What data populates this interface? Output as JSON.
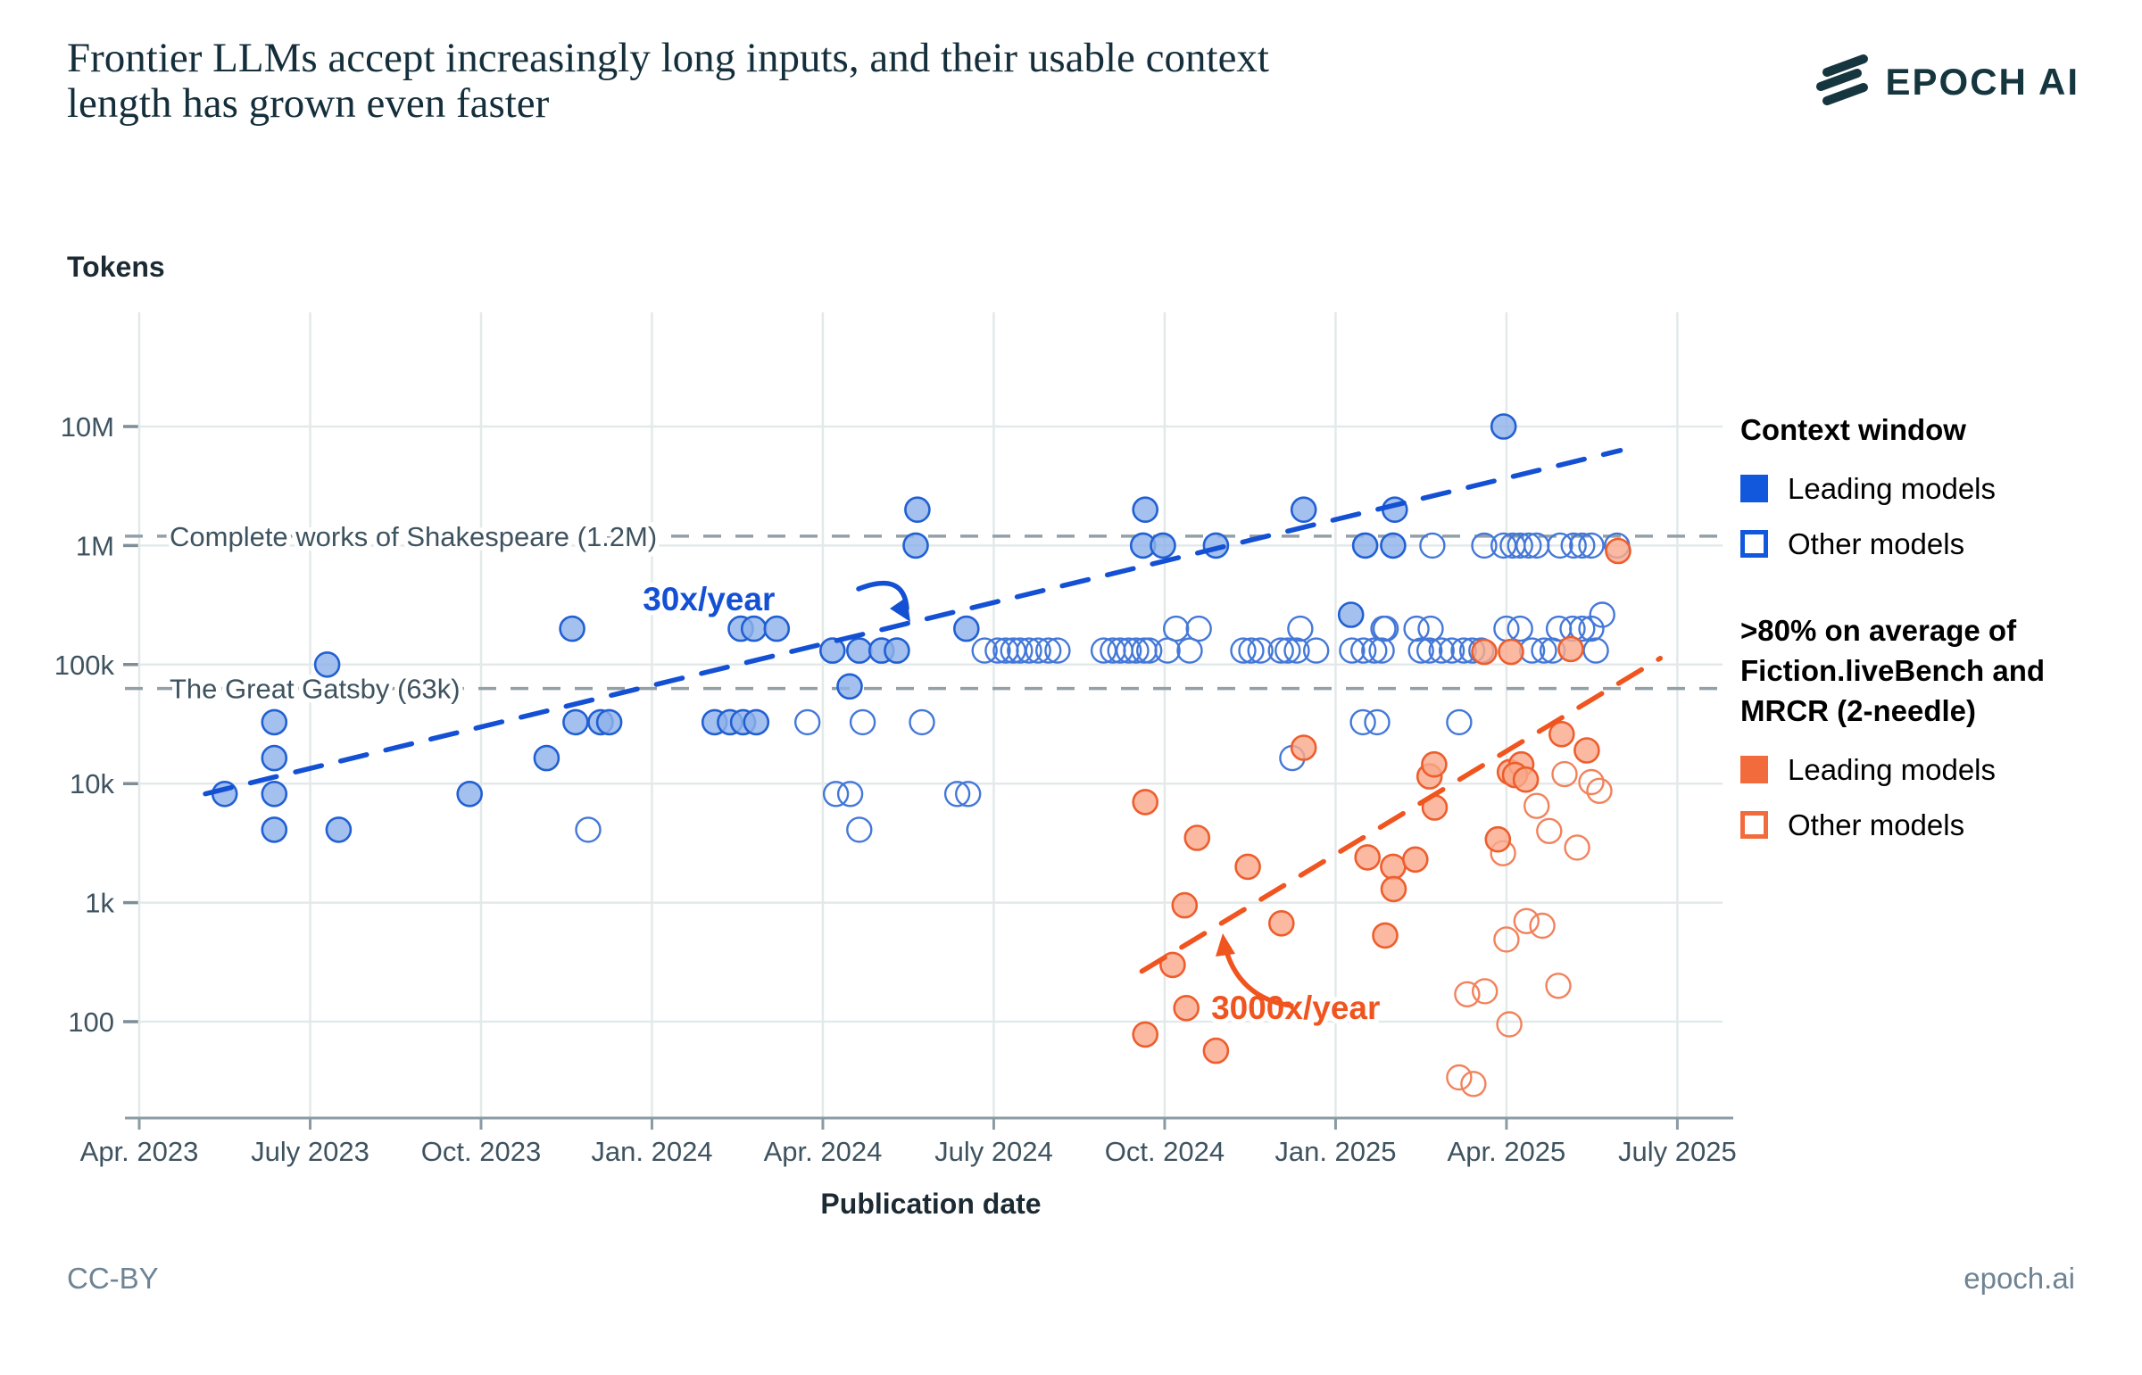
{
  "title": {
    "line1": "Frontier LLMs accept increasingly long inputs, and their usable context",
    "line2": "length has grown even faster"
  },
  "logo": {
    "text": "EPOCH AI"
  },
  "footer": {
    "left": "CC-BY",
    "right": "epoch.ai"
  },
  "legend": {
    "group1_title": "Context window",
    "group1_items": [
      {
        "label": "Leading models",
        "style": "filled",
        "color": "blue"
      },
      {
        "label": "Other models",
        "style": "open",
        "color": "blue"
      }
    ],
    "group2_title_l1": ">80% on average of",
    "group2_title_l2": "Fiction.liveBench and",
    "group2_title_l3": "MRCR (2-needle)",
    "group2_items": [
      {
        "label": "Leading models",
        "style": "filled",
        "color": "orange"
      },
      {
        "label": "Other models",
        "style": "open",
        "color": "orange"
      }
    ]
  },
  "colors": {
    "accent_blue": "#1158DC",
    "blue_fill": "#8FB2EA",
    "blue_stroke": "#2160D3",
    "blue_open": "#4478D8",
    "trend_blue": "#1450D4",
    "accent_orange": "#F26B3C",
    "orange_fill": "#F9A98B",
    "orange_stroke": "#EE5D2D",
    "orange_open": "#F2825C",
    "trend_orange": "#F0541F",
    "grid": "#E3E9E9",
    "refline": "#93A0A7",
    "axis_line": "#8B9BA3",
    "axis_text": "#3E5360",
    "dark_text": "#1C2B33",
    "logo_color": "#15363F"
  },
  "chart_data": {
    "type": "scatter",
    "title": "Frontier LLMs accept increasingly long inputs, and their usable context length has grown even faster",
    "xlabel": "Publication date",
    "ylabel": "Tokens",
    "y_scale": "log",
    "x_unit": "months_since_2023-04",
    "x_ticks": [
      {
        "t": 0,
        "label": "Apr. 2023"
      },
      {
        "t": 3,
        "label": "July 2023"
      },
      {
        "t": 6,
        "label": "Oct. 2023"
      },
      {
        "t": 9,
        "label": "Jan. 2024"
      },
      {
        "t": 12,
        "label": "Apr. 2024"
      },
      {
        "t": 15,
        "label": "July 2024"
      },
      {
        "t": 18,
        "label": "Oct. 2024"
      },
      {
        "t": 21,
        "label": "Jan. 2025"
      },
      {
        "t": 24,
        "label": "Apr. 2025"
      },
      {
        "t": 27,
        "label": "July 2025"
      }
    ],
    "y_ticks": [
      {
        "v": 100,
        "label": "100"
      },
      {
        "v": 1000,
        "label": "1k"
      },
      {
        "v": 10000,
        "label": "10k"
      },
      {
        "v": 100000,
        "label": "100k"
      },
      {
        "v": 1000000,
        "label": "1M"
      },
      {
        "v": 10000000,
        "label": "10M"
      }
    ],
    "reference_lines": [
      {
        "v": 1200000,
        "label": "Complete works of Shakespeare (1.2M)"
      },
      {
        "v": 63000,
        "label": "The Great Gatsby (63k)"
      }
    ],
    "trend_lines": [
      {
        "name": "30x/year",
        "color": "blue",
        "points": [
          [
            1.16,
            8200
          ],
          [
            26.0,
            6300000
          ]
        ]
      },
      {
        "name": "3000x/year",
        "color": "orange",
        "points": [
          [
            17.6,
            265
          ],
          [
            26.7,
            113000
          ]
        ]
      }
    ],
    "annotations": [
      {
        "text": "30x/year",
        "color": "blue",
        "t": 10.0,
        "v": 350000
      },
      {
        "text": "3000x/year",
        "color": "orange",
        "t": 20.3,
        "v": 130
      }
    ],
    "series": [
      {
        "name": "Context window — Leading models",
        "color": "blue",
        "style": "filled",
        "points": [
          [
            1.5,
            8192
          ],
          [
            2.37,
            32768
          ],
          [
            2.37,
            16384
          ],
          [
            2.37,
            8192
          ],
          [
            2.37,
            4096
          ],
          [
            3.3,
            100000
          ],
          [
            3.5,
            4096
          ],
          [
            5.8,
            8192
          ],
          [
            7.15,
            16384
          ],
          [
            7.6,
            200000
          ],
          [
            7.66,
            32768
          ],
          [
            8.1,
            32768
          ],
          [
            8.25,
            32768
          ],
          [
            10.1,
            32768
          ],
          [
            10.37,
            32768
          ],
          [
            10.6,
            32768
          ],
          [
            10.83,
            32768
          ],
          [
            10.56,
            200000
          ],
          [
            10.79,
            200000
          ],
          [
            11.19,
            200000
          ],
          [
            12.17,
            131072
          ],
          [
            12.64,
            131072
          ],
          [
            13.03,
            131072
          ],
          [
            13.3,
            131072
          ],
          [
            12.47,
            65536
          ],
          [
            13.63,
            1000000
          ],
          [
            13.66,
            2000000
          ],
          [
            14.52,
            200000
          ],
          [
            17.62,
            1000000
          ],
          [
            17.66,
            2000000
          ],
          [
            17.97,
            1000000
          ],
          [
            18.9,
            1000000
          ],
          [
            20.44,
            2000000
          ],
          [
            21.27,
            262144
          ],
          [
            21.52,
            1000000
          ],
          [
            22.01,
            1000000
          ],
          [
            22.04,
            2000000
          ],
          [
            23.95,
            10000000
          ]
        ]
      },
      {
        "name": "Context window — Other models",
        "color": "blue",
        "style": "open",
        "points": [
          [
            7.88,
            4096
          ],
          [
            12.64,
            4096
          ],
          [
            12.23,
            8192
          ],
          [
            12.48,
            8192
          ],
          [
            14.36,
            8192
          ],
          [
            14.55,
            8192
          ],
          [
            11.73,
            32768
          ],
          [
            12.7,
            32768
          ],
          [
            13.74,
            32768
          ],
          [
            14.84,
            131072
          ],
          [
            15.07,
            131072
          ],
          [
            15.21,
            131072
          ],
          [
            15.34,
            131072
          ],
          [
            15.46,
            131072
          ],
          [
            15.62,
            131072
          ],
          [
            15.78,
            131072
          ],
          [
            15.96,
            131072
          ],
          [
            16.12,
            131072
          ],
          [
            16.93,
            131072
          ],
          [
            17.09,
            131072
          ],
          [
            17.22,
            131072
          ],
          [
            17.37,
            131072
          ],
          [
            17.5,
            131072
          ],
          [
            17.64,
            131072
          ],
          [
            17.73,
            131072
          ],
          [
            18.05,
            131072
          ],
          [
            18.44,
            131072
          ],
          [
            18.2,
            200000
          ],
          [
            18.6,
            200000
          ],
          [
            19.38,
            131072
          ],
          [
            19.52,
            131072
          ],
          [
            19.68,
            131072
          ],
          [
            20.04,
            131072
          ],
          [
            20.16,
            131072
          ],
          [
            20.32,
            131072
          ],
          [
            20.66,
            131072
          ],
          [
            20.38,
            200000
          ],
          [
            20.24,
            16384
          ],
          [
            21.29,
            131072
          ],
          [
            21.49,
            131072
          ],
          [
            21.68,
            131072
          ],
          [
            21.88,
            200000
          ],
          [
            21.48,
            32768
          ],
          [
            21.73,
            32768
          ],
          [
            22.7,
            1000000
          ],
          [
            21.81,
            131072
          ],
          [
            22.5,
            131072
          ],
          [
            22.65,
            131072
          ],
          [
            22.86,
            131072
          ],
          [
            23.04,
            131072
          ],
          [
            23.25,
            131072
          ],
          [
            23.4,
            131072
          ],
          [
            23.56,
            131072
          ],
          [
            21.84,
            200000
          ],
          [
            22.42,
            200000
          ],
          [
            22.67,
            200000
          ],
          [
            23.17,
            32768
          ],
          [
            23.61,
            1000000
          ],
          [
            23.95,
            1000000
          ],
          [
            24.11,
            1000000
          ],
          [
            24.24,
            1000000
          ],
          [
            24.39,
            1000000
          ],
          [
            24.53,
            1000000
          ],
          [
            24.94,
            1000000
          ],
          [
            25.18,
            1000000
          ],
          [
            25.33,
            1000000
          ],
          [
            25.49,
            1000000
          ],
          [
            25.94,
            1000000
          ],
          [
            24.0,
            200000
          ],
          [
            24.24,
            200000
          ],
          [
            24.92,
            200000
          ],
          [
            25.16,
            200000
          ],
          [
            25.33,
            200000
          ],
          [
            25.49,
            200000
          ],
          [
            25.68,
            262144
          ],
          [
            24.45,
            131072
          ],
          [
            24.66,
            131072
          ],
          [
            24.81,
            131072
          ],
          [
            25.57,
            131072
          ]
        ]
      },
      {
        "name": "Fiction.liveBench & MRCR — Leading models",
        "color": "orange",
        "style": "filled",
        "points": [
          [
            17.66,
            7000
          ],
          [
            17.66,
            78
          ],
          [
            18.14,
            300
          ],
          [
            18.35,
            950
          ],
          [
            18.38,
            130
          ],
          [
            18.57,
            3500
          ],
          [
            18.9,
            57
          ],
          [
            19.46,
            2000
          ],
          [
            20.05,
            670
          ],
          [
            20.44,
            20000
          ],
          [
            21.56,
            2400
          ],
          [
            21.87,
            530
          ],
          [
            22.01,
            2000
          ],
          [
            22.4,
            2300
          ],
          [
            22.02,
            1300
          ],
          [
            22.65,
            11500
          ],
          [
            22.73,
            14500
          ],
          [
            22.74,
            6300
          ],
          [
            23.61,
            128000
          ],
          [
            24.08,
            128000
          ],
          [
            23.85,
            3400
          ],
          [
            24.06,
            12500
          ],
          [
            24.26,
            14500
          ],
          [
            24.15,
            11800
          ],
          [
            24.34,
            10800
          ],
          [
            24.97,
            26000
          ],
          [
            25.13,
            135000
          ],
          [
            25.41,
            19000
          ],
          [
            25.96,
            900000
          ]
        ]
      },
      {
        "name": "Fiction.liveBench & MRCR — Other models",
        "color": "orange",
        "style": "open",
        "points": [
          [
            23.31,
            170
          ],
          [
            23.62,
            180
          ],
          [
            24.05,
            95
          ],
          [
            23.17,
            34
          ],
          [
            23.42,
            30
          ],
          [
            23.94,
            2600
          ],
          [
            24.35,
            700
          ],
          [
            24.63,
            640
          ],
          [
            24.53,
            6500
          ],
          [
            24.75,
            4000
          ],
          [
            25.02,
            12000
          ],
          [
            25.49,
            10300
          ],
          [
            25.63,
            8700
          ],
          [
            24.91,
            200
          ],
          [
            25.24,
            2900
          ],
          [
            24.0,
            490
          ]
        ]
      }
    ]
  }
}
